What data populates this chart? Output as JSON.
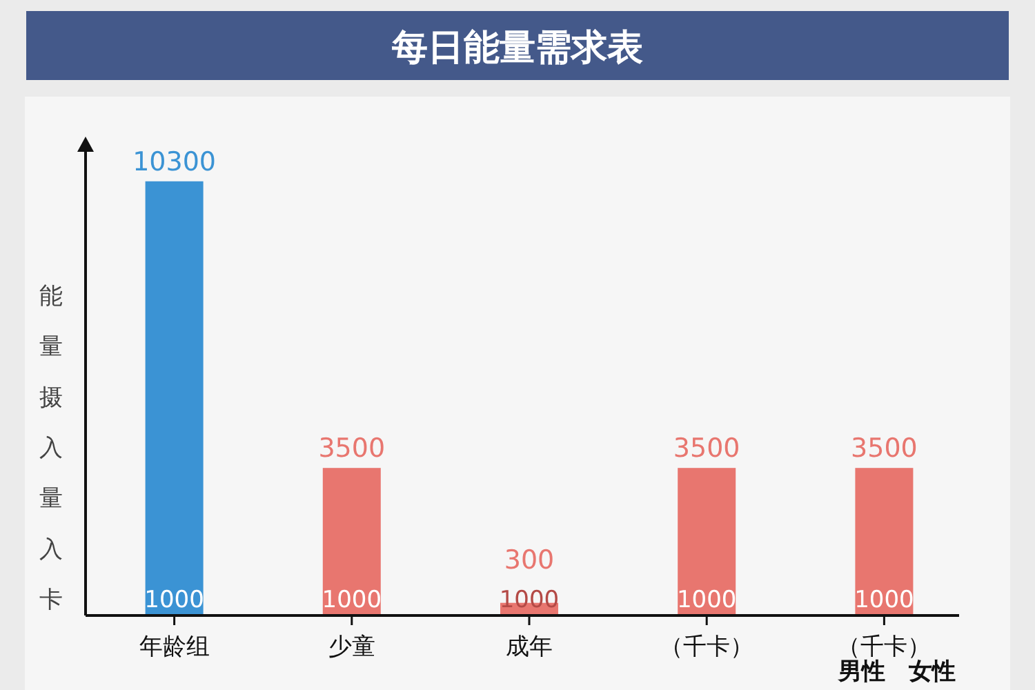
{
  "chart_data": {
    "type": "bar",
    "title": "每日能量需求表",
    "ylabel": "能量摄入量入卡",
    "categories": [
      "年龄组",
      "少童",
      "成年",
      "（千卡）",
      "（千卡）"
    ],
    "values": [
      10300,
      3500,
      300,
      3500,
      3500
    ],
    "ylim": [
      0,
      11000
    ],
    "tick_labels": "x",
    "colors": [
      "#3b93d4",
      "#e8766f",
      "#e8766f",
      "#e8766f",
      "#e8766f"
    ],
    "data_labels": true,
    "annotations": [
      "1000",
      "1000",
      "1000",
      "1000",
      "1000",
      "男性　女性"
    ]
  }
}
